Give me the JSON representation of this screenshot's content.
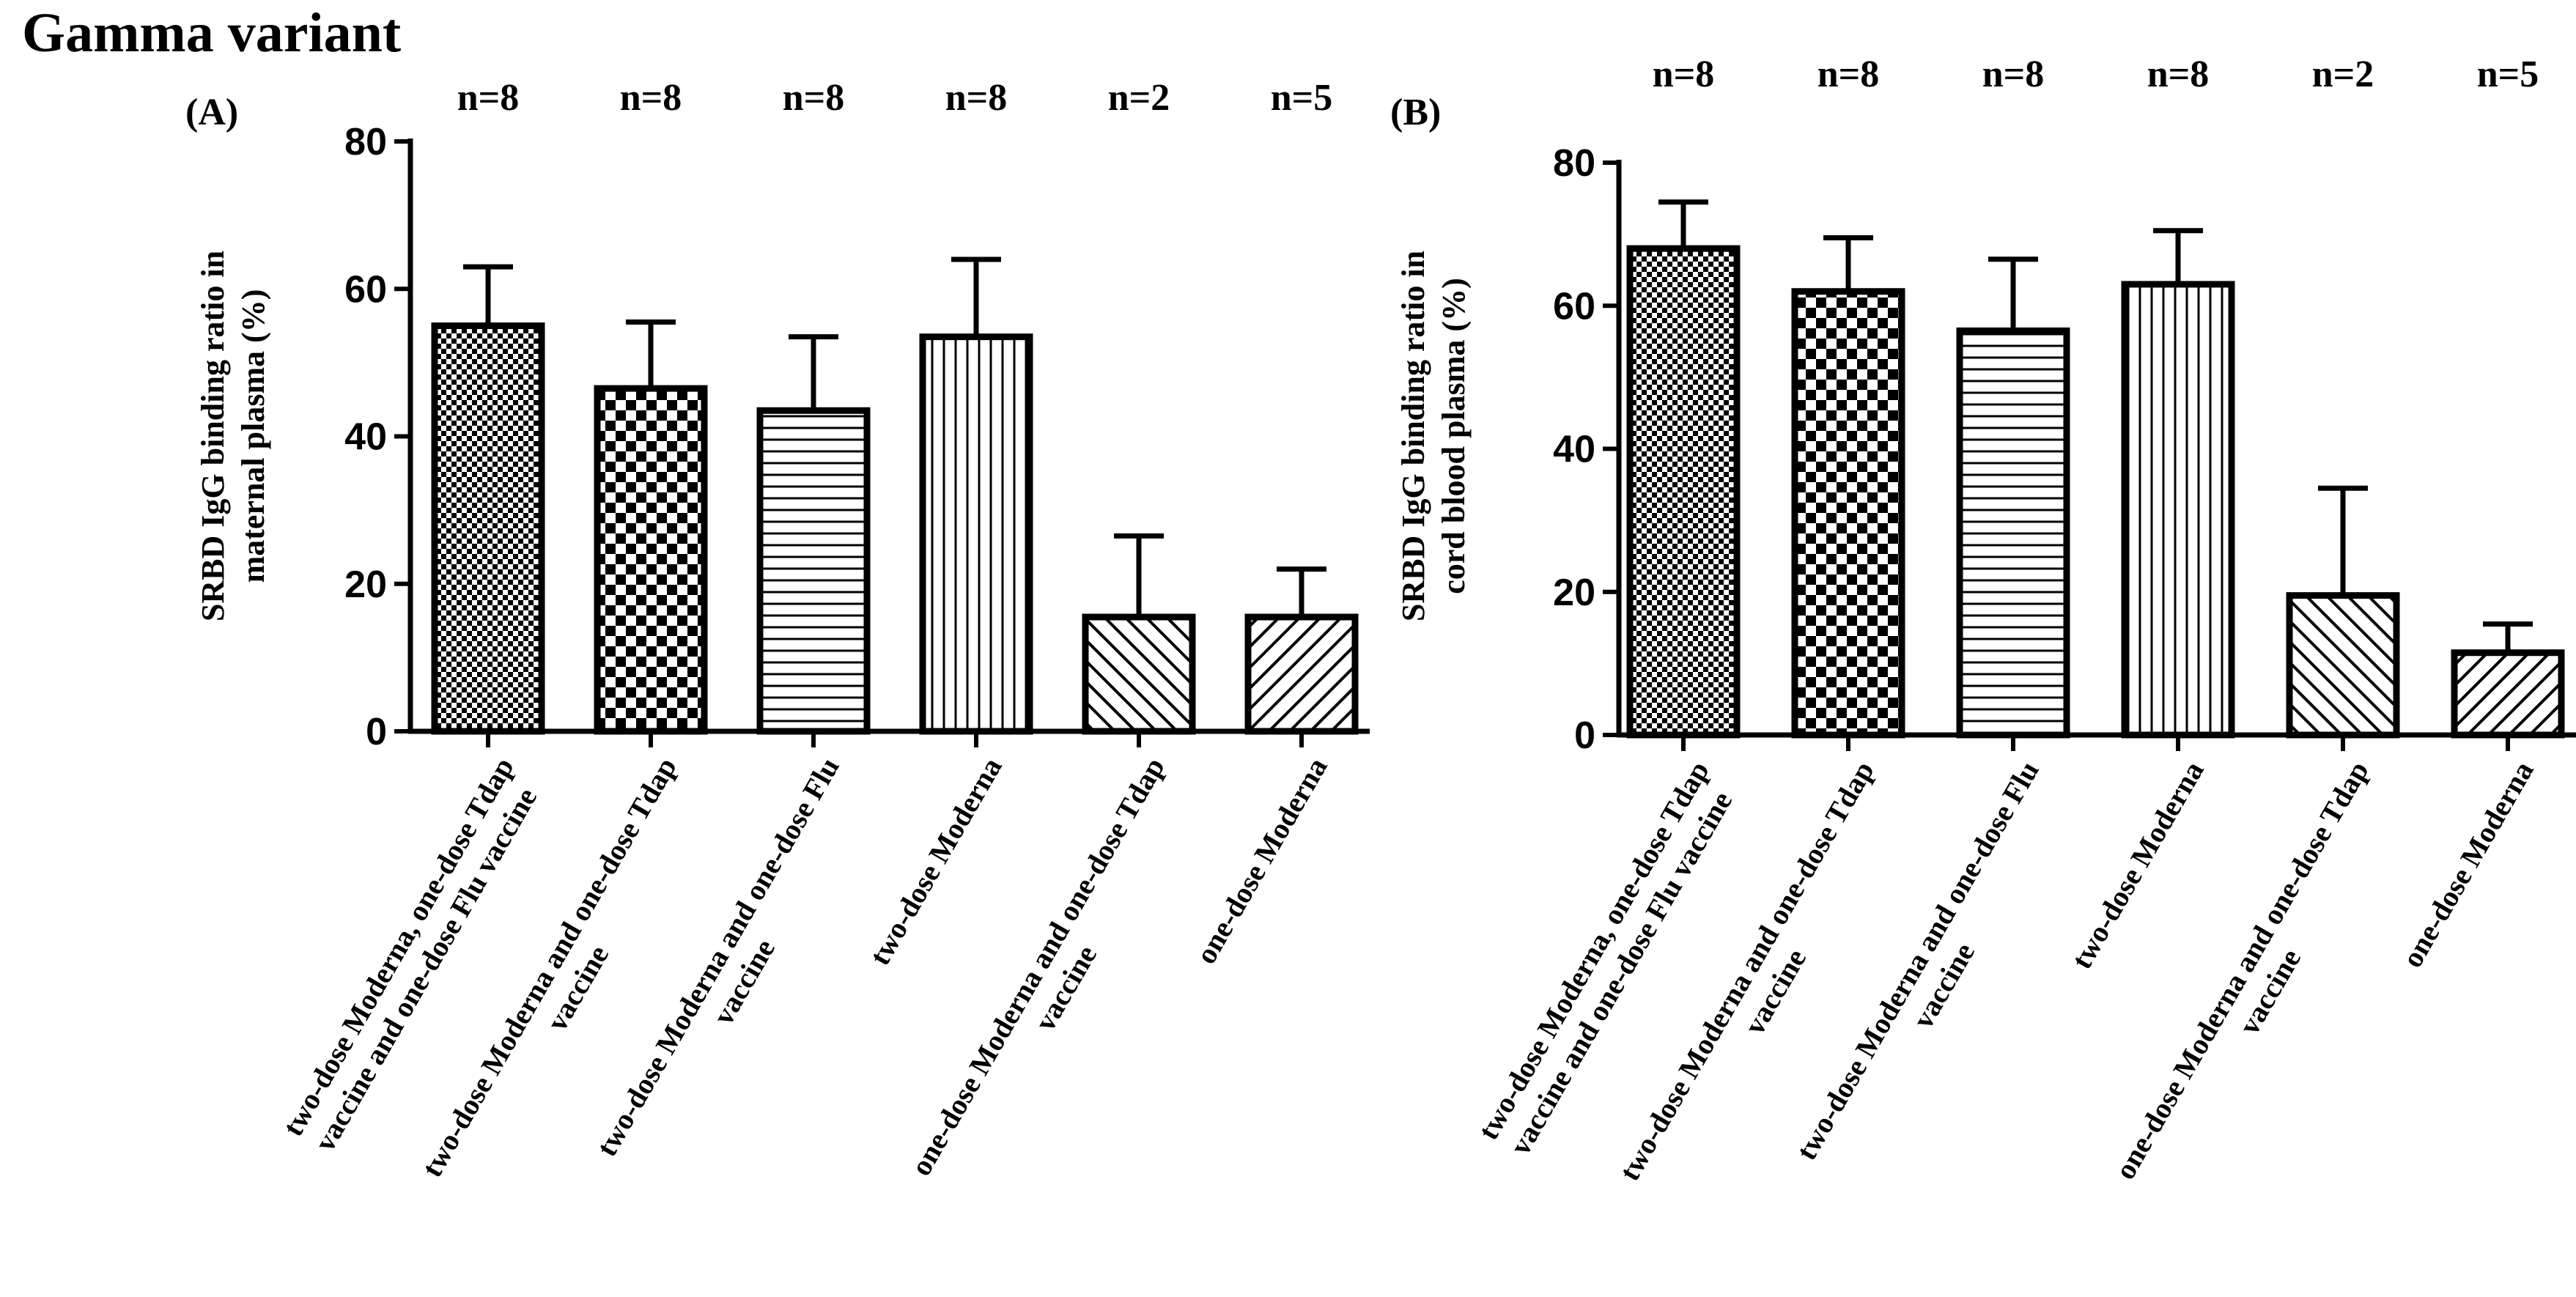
{
  "figure_title": "Gamma variant",
  "colors": {
    "ink": "#000000",
    "background": "#ffffff"
  },
  "chart_data": [
    {
      "panel": "(A)",
      "type": "bar",
      "title": "",
      "xlabel": "",
      "ylabel_lines": [
        "SRBD IgG binding ratio in",
        "maternal plasma (%)"
      ],
      "ylim": [
        0,
        80
      ],
      "yticks": [
        0,
        20,
        40,
        60,
        80
      ],
      "grid": false,
      "categories": [
        [
          "two-dose Moderna, one-dose Tdap",
          "vaccine and one-dose Flu vaccine"
        ],
        [
          "two-dose Moderna and one-dose Tdap",
          "vaccine"
        ],
        [
          "two-dose Moderna and one-dose Flu",
          "vaccine"
        ],
        [
          "two-dose Moderna"
        ],
        [
          "one-dose Moderna and one-dose Tdap",
          "vaccine"
        ],
        [
          "one-dose Moderna"
        ]
      ],
      "n_labels": [
        "n=8",
        "n=8",
        "n=8",
        "n=8",
        "n=2",
        "n=5"
      ],
      "values": [
        55,
        46.5,
        43.5,
        53.5,
        15.5,
        15.5
      ],
      "error_upper": [
        63,
        55.5,
        53.5,
        64,
        26.5,
        22
      ],
      "patterns": [
        "fine-check",
        "check",
        "horizontal",
        "vertical",
        "diag-back",
        "diag-fwd"
      ]
    },
    {
      "panel": "(B)",
      "type": "bar",
      "title": "",
      "xlabel": "",
      "ylabel_lines": [
        "SRBD IgG binding ratio in",
        "cord blood plasma (%)"
      ],
      "ylim": [
        0,
        80
      ],
      "yticks": [
        0,
        20,
        40,
        60,
        80
      ],
      "grid": false,
      "categories": [
        [
          "two-dose Moderna, one-dose Tdap",
          "vaccine and one-dose Flu vaccine"
        ],
        [
          "two-dose Moderna and one-dose Tdap",
          "vaccine"
        ],
        [
          "two-dose Moderna and one-dose Flu",
          "vaccine"
        ],
        [
          "two-dose Moderna"
        ],
        [
          "one-dose Moderna and one-dose Tdap",
          "vaccine"
        ],
        [
          "one-dose Moderna"
        ]
      ],
      "n_labels": [
        "n=8",
        "n=8",
        "n=8",
        "n=8",
        "n=2",
        "n=5"
      ],
      "values": [
        68,
        62,
        56.5,
        63,
        19.5,
        11.5
      ],
      "error_upper": [
        74.5,
        69.5,
        66.5,
        70.5,
        34.5,
        15.5
      ],
      "patterns": [
        "fine-check",
        "check",
        "horizontal",
        "vertical",
        "diag-back",
        "diag-fwd"
      ]
    }
  ]
}
